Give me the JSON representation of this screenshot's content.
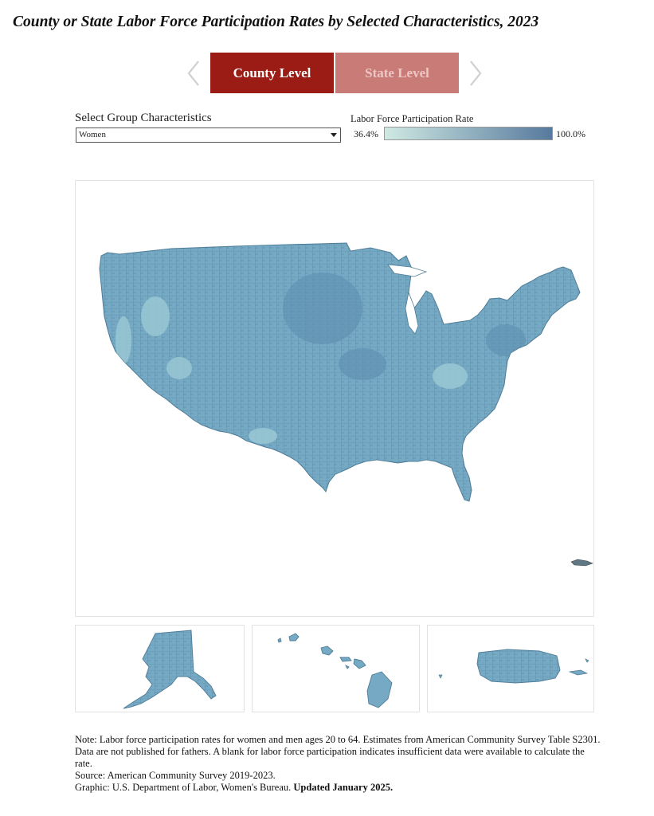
{
  "title": "County or State Labor Force Participation Rates by Selected Characteristics, 2023",
  "tabs": {
    "county": "County Level",
    "state": "State Level"
  },
  "icons": {
    "previous": "chevron-left-icon",
    "next": "chevron-right-icon",
    "dropdown": "caret-down-icon"
  },
  "filter": {
    "label": "Select Group Characteristics",
    "selected": "Women"
  },
  "legend": {
    "title": "Labor Force Participation Rate",
    "min": "36.4%",
    "max": "100.0%",
    "color_low": "#cfe9e2",
    "color_high": "#577a9e"
  },
  "colors": {
    "active_tab": "#9b1c14",
    "inactive_tab": "#c97b78",
    "map_fill": "#75a9c4",
    "map_stroke": "#4f7d98"
  },
  "notes": {
    "note": "Note: Labor force participation rates for women and men ages 20 to 64. Estimates from American Community Survey Table S2301. Data are not published for fathers. A blank for labor force participation indicates insufficient data were available to calculate the rate.",
    "source": "Source: American Community Survey 2019-2023.",
    "graphic": "Graphic: U.S. Department of Labor, Women's Bureau.",
    "updated": "Updated January 2025."
  }
}
